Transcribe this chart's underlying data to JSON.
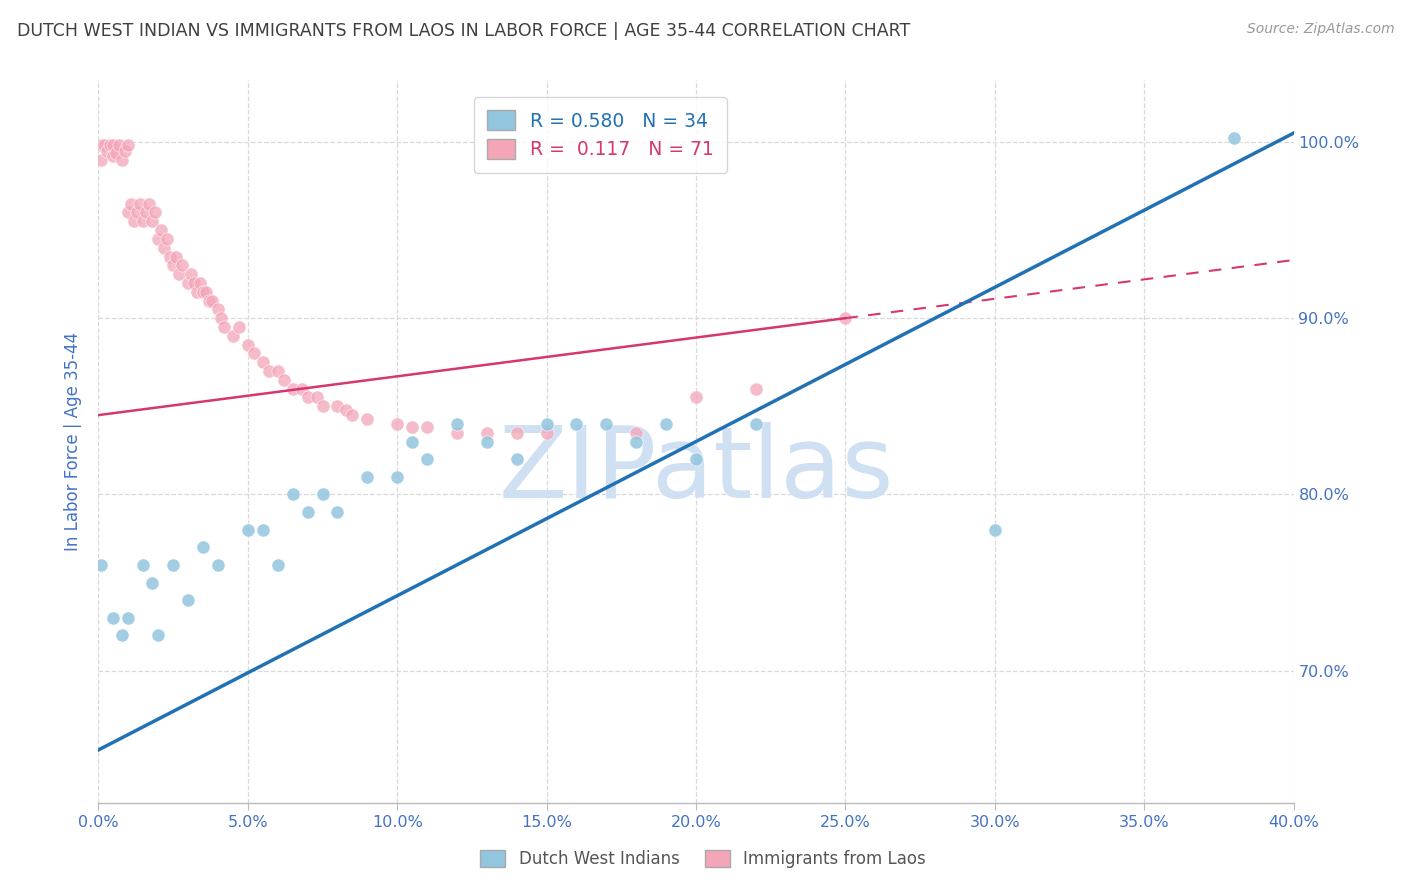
{
  "title": "DUTCH WEST INDIAN VS IMMIGRANTS FROM LAOS IN LABOR FORCE | AGE 35-44 CORRELATION CHART",
  "source_text": "Source: ZipAtlas.com",
  "ylabel": "In Labor Force | Age 35-44",
  "watermark": "ZIPatlas",
  "xlim": [
    0.0,
    0.4
  ],
  "ylim": [
    0.625,
    1.035
  ],
  "xticks": [
    0.0,
    0.05,
    0.1,
    0.15,
    0.2,
    0.25,
    0.3,
    0.35,
    0.4
  ],
  "yticks": [
    0.7,
    0.8,
    0.9,
    1.0
  ],
  "ytick_labels": [
    "70.0%",
    "80.0%",
    "90.0%",
    "100.0%"
  ],
  "xtick_labels": [
    "0.0%",
    "5.0%",
    "10.0%",
    "15.0%",
    "20.0%",
    "25.0%",
    "30.0%",
    "35.0%",
    "40.0%"
  ],
  "legend_blue_label": "R = 0.580   N = 34",
  "legend_pink_label": "R =  0.117   N = 71",
  "legend_label_blue": "Dutch West Indians",
  "legend_label_pink": "Immigrants from Laos",
  "color_blue": "#92c5de",
  "color_pink": "#f4a5b8",
  "color_blue_line": "#2171b5",
  "color_pink_line": "#d63771",
  "color_title": "#404040",
  "color_axis": "#4472c4",
  "color_grid": "#d9d9d9",
  "color_watermark": "#cfe0f3",
  "blue_x": [
    0.001,
    0.005,
    0.008,
    0.01,
    0.015,
    0.018,
    0.02,
    0.025,
    0.03,
    0.035,
    0.04,
    0.05,
    0.055,
    0.06,
    0.065,
    0.07,
    0.075,
    0.08,
    0.09,
    0.1,
    0.105,
    0.11,
    0.12,
    0.13,
    0.14,
    0.15,
    0.16,
    0.17,
    0.18,
    0.19,
    0.2,
    0.22,
    0.3,
    0.38
  ],
  "blue_y": [
    0.76,
    0.73,
    0.72,
    0.73,
    0.76,
    0.75,
    0.72,
    0.76,
    0.74,
    0.77,
    0.76,
    0.78,
    0.78,
    0.76,
    0.8,
    0.79,
    0.8,
    0.79,
    0.81,
    0.81,
    0.83,
    0.82,
    0.84,
    0.83,
    0.82,
    0.84,
    0.84,
    0.84,
    0.83,
    0.84,
    0.82,
    0.84,
    0.78,
    1.002
  ],
  "pink_x": [
    0.001,
    0.001,
    0.002,
    0.003,
    0.004,
    0.005,
    0.005,
    0.006,
    0.007,
    0.008,
    0.009,
    0.01,
    0.01,
    0.011,
    0.012,
    0.013,
    0.014,
    0.015,
    0.016,
    0.017,
    0.018,
    0.019,
    0.02,
    0.021,
    0.022,
    0.023,
    0.024,
    0.025,
    0.026,
    0.027,
    0.028,
    0.03,
    0.031,
    0.032,
    0.033,
    0.034,
    0.035,
    0.036,
    0.037,
    0.038,
    0.04,
    0.041,
    0.042,
    0.045,
    0.047,
    0.05,
    0.052,
    0.055,
    0.057,
    0.06,
    0.062,
    0.065,
    0.068,
    0.07,
    0.073,
    0.075,
    0.08,
    0.083,
    0.085,
    0.09,
    0.1,
    0.105,
    0.11,
    0.12,
    0.13,
    0.14,
    0.15,
    0.18,
    0.2,
    0.22,
    0.25
  ],
  "pink_y": [
    0.998,
    0.99,
    0.998,
    0.995,
    0.998,
    0.992,
    0.998,
    0.994,
    0.998,
    0.99,
    0.995,
    0.998,
    0.96,
    0.965,
    0.955,
    0.96,
    0.965,
    0.955,
    0.96,
    0.965,
    0.955,
    0.96,
    0.945,
    0.95,
    0.94,
    0.945,
    0.935,
    0.93,
    0.935,
    0.925,
    0.93,
    0.92,
    0.925,
    0.92,
    0.915,
    0.92,
    0.915,
    0.915,
    0.91,
    0.91,
    0.905,
    0.9,
    0.895,
    0.89,
    0.895,
    0.885,
    0.88,
    0.875,
    0.87,
    0.87,
    0.865,
    0.86,
    0.86,
    0.855,
    0.855,
    0.85,
    0.85,
    0.848,
    0.845,
    0.843,
    0.84,
    0.838,
    0.838,
    0.835,
    0.835,
    0.835,
    0.835,
    0.835,
    0.855,
    0.86,
    0.9
  ],
  "blue_line_x0": 0.0,
  "blue_line_y0": 0.655,
  "blue_line_x1": 0.4,
  "blue_line_y1": 1.005,
  "pink_line_x0": 0.0,
  "pink_line_y0": 0.845,
  "pink_line_x1": 0.25,
  "pink_line_y1": 0.9
}
